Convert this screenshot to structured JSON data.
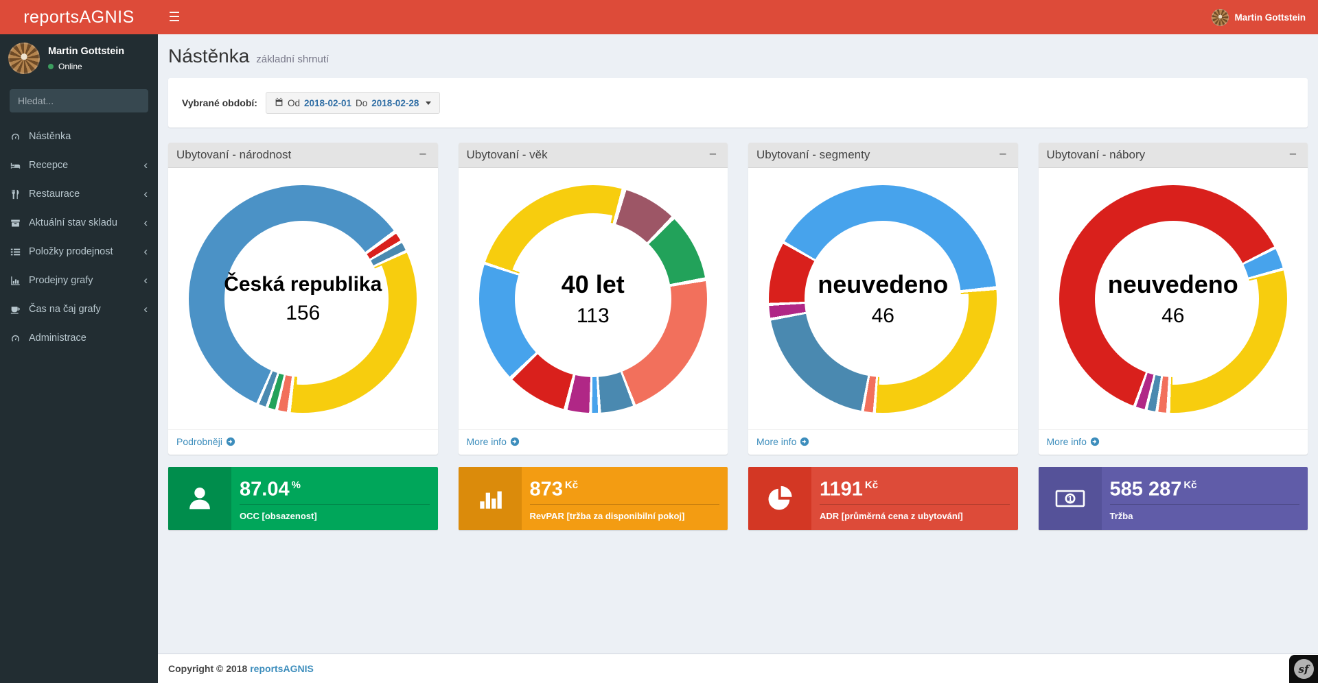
{
  "navbar": {
    "brand": "reportsAGNIS",
    "user": "Martin Gottstein"
  },
  "sidebar": {
    "user": {
      "name": "Martin Gottstein",
      "status": "Online"
    },
    "search_placeholder": "Hledat...",
    "items": [
      {
        "label": "Nástěnka",
        "icon": "gauge-icon",
        "expandable": false
      },
      {
        "label": "Recepce",
        "icon": "bed-icon",
        "expandable": true
      },
      {
        "label": "Restaurace",
        "icon": "cutlery-icon",
        "expandable": true
      },
      {
        "label": "Aktuální stav skladu",
        "icon": "archive-icon",
        "expandable": true
      },
      {
        "label": "Položky prodejnost",
        "icon": "list-icon",
        "expandable": true
      },
      {
        "label": "Prodejny grafy",
        "icon": "bar-chart-icon",
        "expandable": true
      },
      {
        "label": "Čas na čaj grafy",
        "icon": "coffee-cup-icon",
        "expandable": true
      },
      {
        "label": "Administrace",
        "icon": "gauge-icon",
        "expandable": false
      }
    ]
  },
  "header": {
    "title": "Nástěnka",
    "subtitle": "základní shrnutí"
  },
  "period": {
    "label": "Vybrané období:",
    "from_label": "Od",
    "from": "2018-02-01",
    "to_label": "Do",
    "to": "2018-02-28"
  },
  "ui": {
    "collapse_glyph": "−",
    "chevron_glyph": "‹"
  },
  "chart_data": [
    {
      "type": "donut",
      "title": "Ubytovaní - národnost",
      "center_label": "Česká republika",
      "center_value": "156",
      "link_label": "Podrobněji",
      "slices": [
        {
          "color": "#4b92c6",
          "from": 0,
          "to": 53
        },
        {
          "color": "#d9201c",
          "from": 55,
          "to": 59
        },
        {
          "color": "#4a89b0",
          "from": 60.5,
          "to": 64.5
        },
        {
          "color": "#f7cd0e",
          "from": 66,
          "to": 186
        },
        {
          "color": "#f2705c",
          "from": 188,
          "to": 192.5
        },
        {
          "color": "#22a25a",
          "from": 194,
          "to": 197.5
        },
        {
          "color": "#4a89b0",
          "from": 199,
          "to": 202.5
        },
        {
          "color": "#4b92c6",
          "from": 204,
          "to": 360
        }
      ],
      "highlight": {
        "from": 67,
        "span": 117
      }
    },
    {
      "type": "donut",
      "title": "Ubytovaní - věk",
      "center_label": "40 let",
      "center_value": "113",
      "link_label": "More info",
      "slices": [
        {
          "color": "#f7cd0e",
          "from": 0,
          "to": 14.5
        },
        {
          "color": "#9d5666",
          "from": 17,
          "to": 43.5
        },
        {
          "color": "#22a25a",
          "from": 45.5,
          "to": 79
        },
        {
          "color": "#f2705c",
          "from": 81,
          "to": 158
        },
        {
          "color": "#4a89b0",
          "from": 159.5,
          "to": 176
        },
        {
          "color": "#47a3ec",
          "from": 177.5,
          "to": 180.5
        },
        {
          "color": "#b02786",
          "from": 182,
          "to": 193
        },
        {
          "color": "#d9201c",
          "from": 195,
          "to": 225
        },
        {
          "color": "#47a3ec",
          "from": 227,
          "to": 287.5
        },
        {
          "color": "#f7cd0e",
          "from": 289,
          "to": 360
        }
      ],
      "highlight": {
        "from": 290,
        "span": 83
      }
    },
    {
      "type": "donut",
      "title": "Ubytovaní - segmenty",
      "center_label": "neuvedeno",
      "center_value": "46",
      "link_label": "More info",
      "slices": [
        {
          "color": "#47a3ec",
          "from": 0,
          "to": 83.5
        },
        {
          "color": "#f7cd0e",
          "from": 85.5,
          "to": 183.5
        },
        {
          "color": "#f2705c",
          "from": 185,
          "to": 189.5
        },
        {
          "color": "#4a89b0",
          "from": 191,
          "to": 259
        },
        {
          "color": "#b02786",
          "from": 260.5,
          "to": 266.5
        },
        {
          "color": "#d9201c",
          "from": 268,
          "to": 299
        },
        {
          "color": "#47a3ec",
          "from": 300.5,
          "to": 360
        }
      ],
      "highlight": {
        "from": 86.5,
        "span": 96
      }
    },
    {
      "type": "donut",
      "title": "Ubytovaní - nábory",
      "center_label": "neuvedeno",
      "center_value": "46",
      "link_label": "More info",
      "slices": [
        {
          "color": "#d9201c",
          "from": 0,
          "to": 62.5
        },
        {
          "color": "#47a3ec",
          "from": 64,
          "to": 74
        },
        {
          "color": "#f7cd0e",
          "from": 75.5,
          "to": 181.5
        },
        {
          "color": "#f2705c",
          "from": 183.5,
          "to": 187.5
        },
        {
          "color": "#4a89b0",
          "from": 189,
          "to": 193
        },
        {
          "color": "#b02786",
          "from": 194.5,
          "to": 199
        },
        {
          "color": "#d9201c",
          "from": 200.5,
          "to": 360
        }
      ],
      "highlight": {
        "from": 76.5,
        "span": 104
      }
    }
  ],
  "stats": [
    {
      "color": "#00a65a",
      "icon_bg": "#008d4c",
      "icon": "person-icon",
      "value": "87.04",
      "unit": "%",
      "label": "OCC [obsazenost]"
    },
    {
      "color": "#f39c12",
      "icon_bg": "#db8b0b",
      "icon": "bar-chart-icon",
      "value": "873",
      "unit": "Kč",
      "label": "RevPAR [tržba za disponibilní pokoj]"
    },
    {
      "color": "#dd4b39",
      "icon_bg": "#d33724",
      "icon": "pie-chart-icon",
      "value": "1191",
      "unit": "Kč",
      "label": "ADR [průměrná cena z ubytování]"
    },
    {
      "color": "#605ca8",
      "icon_bg": "#555299",
      "icon": "banknote-icon",
      "value": "585 287",
      "unit": "Kč",
      "label": "Tržba"
    }
  ],
  "footer": {
    "copyright": "Copyright © 2018",
    "brand": "reportsAGNIS"
  },
  "sf_badge": {
    "label": "sf"
  }
}
